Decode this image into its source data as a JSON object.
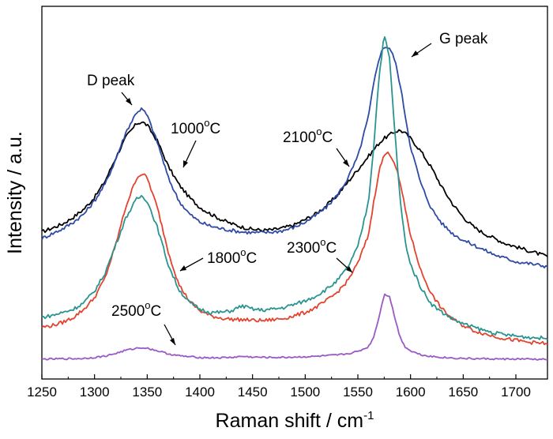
{
  "chart_data": {
    "type": "line",
    "title": "",
    "xlabel": "Raman shift / cm",
    "xlabel_superscript": "-1",
    "ylabel": "Intensity / a.u.",
    "xlim": [
      1250,
      1730
    ],
    "ylim": [
      0,
      100
    ],
    "x_ticks": [
      1250,
      1300,
      1350,
      1400,
      1450,
      1500,
      1550,
      1600,
      1650,
      1700
    ],
    "y_ticks_shown": false,
    "grid": false,
    "legend": "none",
    "x": [
      1250,
      1260,
      1270,
      1280,
      1290,
      1300,
      1310,
      1320,
      1330,
      1340,
      1345,
      1350,
      1360,
      1370,
      1380,
      1390,
      1400,
      1410,
      1420,
      1430,
      1440,
      1450,
      1460,
      1470,
      1480,
      1490,
      1500,
      1510,
      1520,
      1530,
      1540,
      1550,
      1560,
      1565,
      1570,
      1575,
      1580,
      1585,
      1590,
      1595,
      1600,
      1610,
      1620,
      1630,
      1640,
      1650,
      1660,
      1670,
      1680,
      1690,
      1700,
      1710,
      1720,
      1730
    ],
    "series": [
      {
        "key": "c1000",
        "color": "#000000",
        "values": [
          39.0,
          40.2,
          41.5,
          43.5,
          46.0,
          49.5,
          54.5,
          61.5,
          68.0,
          72.0,
          72.5,
          71.5,
          66.5,
          59.0,
          53.5,
          49.5,
          46.5,
          44.5,
          42.8,
          41.5,
          40.5,
          39.8,
          39.5,
          39.7,
          40.3,
          41.2,
          42.8,
          44.5,
          47.0,
          50.0,
          54.0,
          58.0,
          62.0,
          64.0,
          66.0,
          67.5,
          68.5,
          69.5,
          70.0,
          69.0,
          67.5,
          63.5,
          58.5,
          52.5,
          47.5,
          43.5,
          40.5,
          38.5,
          37.0,
          35.5,
          34.5,
          33.5,
          32.5,
          31.5
        ]
      },
      {
        "key": "c2100",
        "color": "#2e4aa5",
        "values": [
          37.0,
          38.5,
          40.0,
          42.0,
          44.5,
          48.5,
          53.5,
          61.0,
          69.5,
          75.5,
          76.5,
          74.5,
          66.0,
          55.5,
          48.5,
          44.5,
          42.0,
          40.8,
          40.0,
          39.5,
          39.0,
          38.8,
          38.8,
          39.0,
          39.5,
          40.5,
          42.0,
          44.0,
          46.5,
          50.0,
          55.0,
          62.0,
          74.0,
          84.0,
          92.0,
          95.5,
          95.0,
          91.5,
          84.0,
          74.5,
          65.0,
          53.5,
          46.0,
          41.5,
          38.5,
          36.5,
          35.0,
          33.5,
          32.0,
          31.0,
          30.0,
          29.5,
          29.0,
          28.5
        ]
      },
      {
        "key": "c1800",
        "color": "#e4432f",
        "values": [
          10.0,
          10.5,
          11.5,
          13.0,
          15.5,
          19.0,
          25.0,
          35.0,
          47.0,
          55.5,
          56.8,
          55.5,
          46.0,
          33.0,
          23.0,
          18.0,
          15.0,
          13.5,
          12.8,
          12.4,
          12.3,
          12.1,
          12.0,
          12.3,
          12.7,
          13.5,
          14.5,
          16.0,
          18.0,
          20.5,
          24.0,
          29.5,
          38.0,
          48.0,
          57.5,
          62.5,
          63.0,
          60.0,
          54.0,
          46.0,
          38.0,
          27.0,
          20.0,
          15.5,
          12.5,
          10.5,
          9.0,
          8.0,
          7.2,
          6.5,
          6.0,
          5.5,
          5.2,
          5.0
        ]
      },
      {
        "key": "c2300",
        "color": "#2a9490",
        "values": [
          13.0,
          13.6,
          14.5,
          15.5,
          17.5,
          21.0,
          26.5,
          35.0,
          43.5,
          49.0,
          50.0,
          48.5,
          40.0,
          29.0,
          21.5,
          17.5,
          15.5,
          14.5,
          14.5,
          15.0,
          16.5,
          15.5,
          15.2,
          15.5,
          16.0,
          17.0,
          18.0,
          19.5,
          21.5,
          24.0,
          28.0,
          34.5,
          48.0,
          65.0,
          86.0,
          99.0,
          92.0,
          70.0,
          49.0,
          36.0,
          29.0,
          22.0,
          17.0,
          14.5,
          12.5,
          11.0,
          10.0,
          9.0,
          8.2,
          7.7,
          7.3,
          7.0,
          6.8,
          6.6
        ]
      },
      {
        "key": "c2500",
        "color": "#9b59c4",
        "values": [
          0.3,
          0.3,
          0.4,
          0.4,
          0.5,
          0.8,
          1.2,
          2.0,
          3.0,
          3.6,
          3.8,
          3.6,
          2.8,
          1.9,
          1.3,
          1.0,
          0.8,
          0.7,
          0.7,
          0.8,
          1.1,
          0.9,
          0.8,
          0.8,
          0.8,
          0.9,
          1.0,
          1.1,
          1.3,
          1.5,
          1.9,
          2.6,
          4.0,
          7.0,
          13.0,
          20.0,
          19.5,
          13.0,
          7.0,
          4.0,
          2.8,
          1.6,
          1.1,
          0.8,
          0.6,
          0.5,
          0.4,
          0.4,
          0.3,
          0.3,
          0.3,
          0.3,
          0.2,
          0.2
        ]
      }
    ],
    "annotations": {
      "d_peak": "D peak",
      "g_peak": "G peak",
      "t1000": "1000",
      "t2100": "2100",
      "t1800": "1800",
      "t2300": "2300",
      "t2500": "2500",
      "degree_unit": "C",
      "degree_sign": "o"
    }
  }
}
